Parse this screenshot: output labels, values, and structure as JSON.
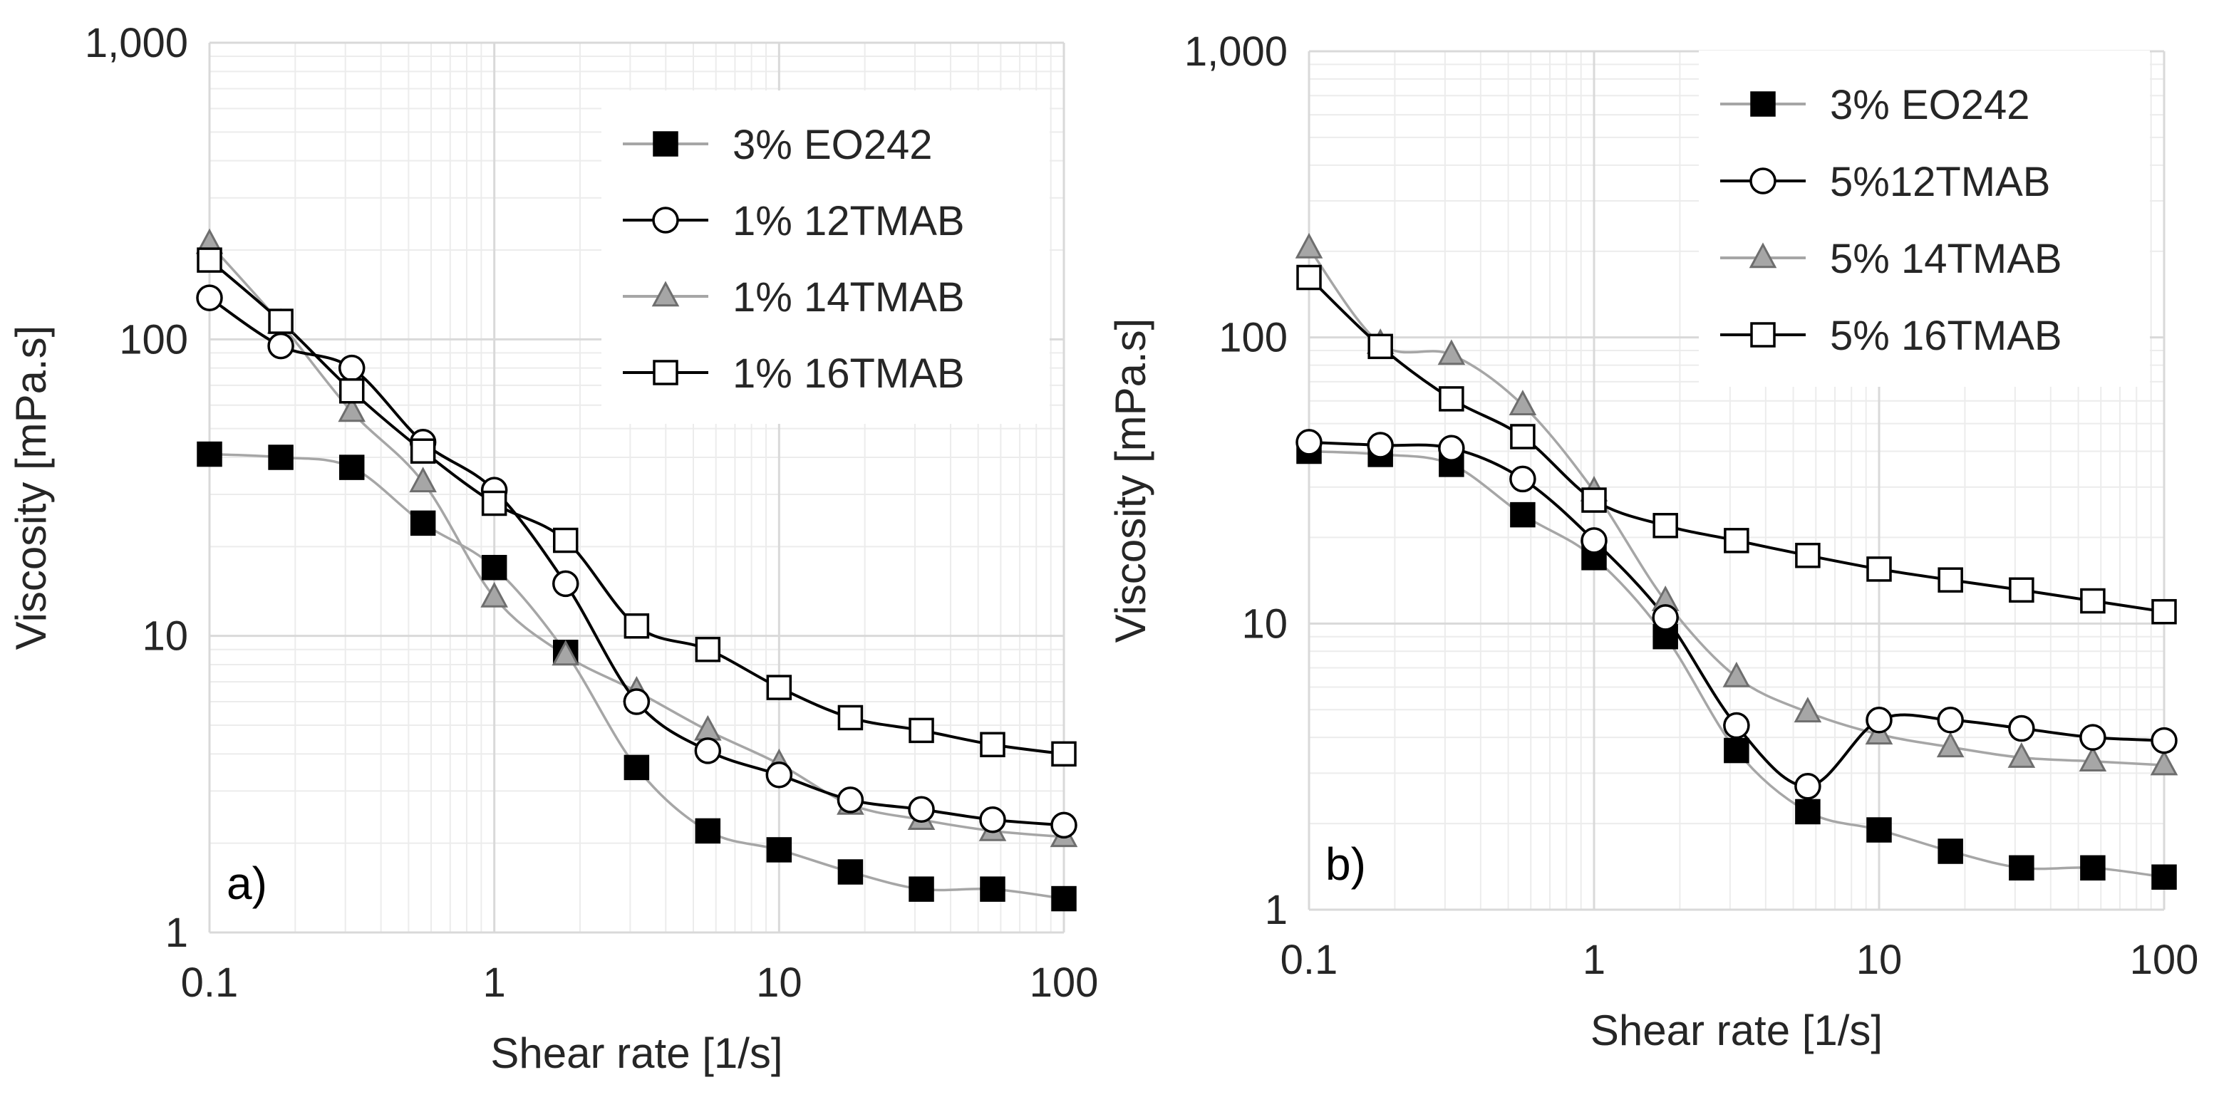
{
  "colors": {
    "grid_major": "#d9d9d9",
    "grid_minor": "#ececec",
    "axis_text": "#262626",
    "black_series": "#000000",
    "gray_series": "#a6a6a6",
    "marker_gray_fill": "#a6a6a6",
    "marker_white_fill": "#ffffff"
  },
  "chart_data": [
    {
      "type": "line",
      "panel_label": "a)",
      "xscale": "log",
      "yscale": "log",
      "xlim": [
        0.1,
        100
      ],
      "ylim": [
        1,
        1000
      ],
      "xlabel": "Shear rate [1/s]",
      "ylabel": "Viscosity [mPa.s]",
      "xticks": [
        0.1,
        1,
        10,
        100
      ],
      "xtick_labels": [
        "0.1",
        "1",
        "10",
        "100"
      ],
      "yticks": [
        1,
        10,
        100,
        1000
      ],
      "ytick_labels": [
        "1",
        "10",
        "100",
        "1,000"
      ],
      "grid": true,
      "legend": "top-right",
      "series": [
        {
          "name": "3% EO242",
          "marker": "square",
          "marker_fill": "black",
          "line_color": "gray",
          "x": [
            0.1,
            0.178,
            0.316,
            0.562,
            1,
            1.78,
            3.16,
            5.62,
            10,
            17.8,
            31.6,
            56.2,
            100
          ],
          "y": [
            41,
            40,
            37,
            24,
            17,
            8.8,
            3.6,
            2.2,
            1.9,
            1.6,
            1.4,
            1.4,
            1.3
          ]
        },
        {
          "name": "1% 12TMAB",
          "marker": "circle",
          "marker_fill": "white",
          "line_color": "black",
          "x": [
            0.1,
            0.178,
            0.316,
            0.562,
            1,
            1.78,
            3.16,
            5.62,
            10,
            17.8,
            31.6,
            56.2,
            100
          ],
          "y": [
            138,
            95,
            80,
            45,
            31,
            15,
            6.0,
            4.1,
            3.4,
            2.8,
            2.6,
            2.4,
            2.3
          ]
        },
        {
          "name": "1% 14TMAB",
          "marker": "triangle",
          "marker_fill": "gray",
          "line_color": "gray",
          "x": [
            0.1,
            0.178,
            0.316,
            0.562,
            1,
            1.78,
            3.16,
            5.62,
            10,
            17.8,
            31.6,
            56.2,
            100
          ],
          "y": [
            210,
            113,
            57,
            33,
            13.5,
            8.6,
            6.5,
            4.8,
            3.7,
            2.7,
            2.4,
            2.2,
            2.1
          ]
        },
        {
          "name": "1% 16TMAB",
          "marker": "square",
          "marker_fill": "white",
          "line_color": "black",
          "x": [
            0.1,
            0.178,
            0.316,
            0.562,
            1,
            1.78,
            3.16,
            5.62,
            10,
            17.8,
            31.6,
            56.2,
            100
          ],
          "y": [
            185,
            115,
            67,
            42,
            28,
            21,
            10.8,
            9.0,
            6.7,
            5.3,
            4.8,
            4.3,
            4.0
          ]
        }
      ]
    },
    {
      "type": "line",
      "panel_label": "b)",
      "xscale": "log",
      "yscale": "log",
      "xlim": [
        0.1,
        100
      ],
      "ylim": [
        1,
        1000
      ],
      "xlabel": "Shear rate [1/s]",
      "ylabel": "Viscosity [mPa.s]",
      "xticks": [
        0.1,
        1,
        10,
        100
      ],
      "xtick_labels": [
        "0.1",
        "1",
        "10",
        "100"
      ],
      "yticks": [
        1,
        10,
        100,
        1000
      ],
      "ytick_labels": [
        "1",
        "10",
        "100",
        "1,000"
      ],
      "grid": true,
      "legend": "top-right",
      "series": [
        {
          "name": "3% EO242",
          "marker": "square",
          "marker_fill": "black",
          "line_color": "gray",
          "x": [
            0.1,
            0.178,
            0.316,
            0.562,
            1,
            1.78,
            3.16,
            5.62,
            10,
            17.8,
            31.6,
            56.2,
            100
          ],
          "y": [
            40,
            39,
            36,
            24,
            17,
            9,
            3.6,
            2.2,
            1.9,
            1.6,
            1.4,
            1.4,
            1.3
          ]
        },
        {
          "name": "5%12TMAB",
          "marker": "circle",
          "marker_fill": "white",
          "line_color": "black",
          "x": [
            0.1,
            0.178,
            0.316,
            0.562,
            1,
            1.78,
            3.16,
            5.62,
            10,
            17.8,
            31.6,
            56.2,
            100
          ],
          "y": [
            43,
            42,
            41,
            32,
            19.5,
            10.5,
            4.4,
            2.7,
            4.6,
            4.6,
            4.3,
            4.0,
            3.9
          ]
        },
        {
          "name": "5% 14TMAB",
          "marker": "triangle",
          "marker_fill": "gray",
          "line_color": "gray",
          "x": [
            0.1,
            0.178,
            0.316,
            0.562,
            1,
            1.78,
            3.16,
            5.62,
            10,
            17.8,
            31.6,
            56.2,
            100
          ],
          "y": [
            205,
            95,
            87,
            58,
            29,
            12,
            6.5,
            4.9,
            4.1,
            3.7,
            3.4,
            3.3,
            3.2
          ]
        },
        {
          "name": "5% 16TMAB",
          "marker": "square",
          "marker_fill": "white",
          "line_color": "black",
          "x": [
            0.1,
            0.178,
            0.316,
            0.562,
            1,
            1.78,
            3.16,
            5.62,
            10,
            17.8,
            31.6,
            56.2,
            100
          ],
          "y": [
            162,
            93,
            61,
            45,
            27,
            22,
            19.5,
            17.3,
            15.5,
            14.2,
            13.1,
            12.0,
            11.0
          ]
        }
      ]
    }
  ]
}
